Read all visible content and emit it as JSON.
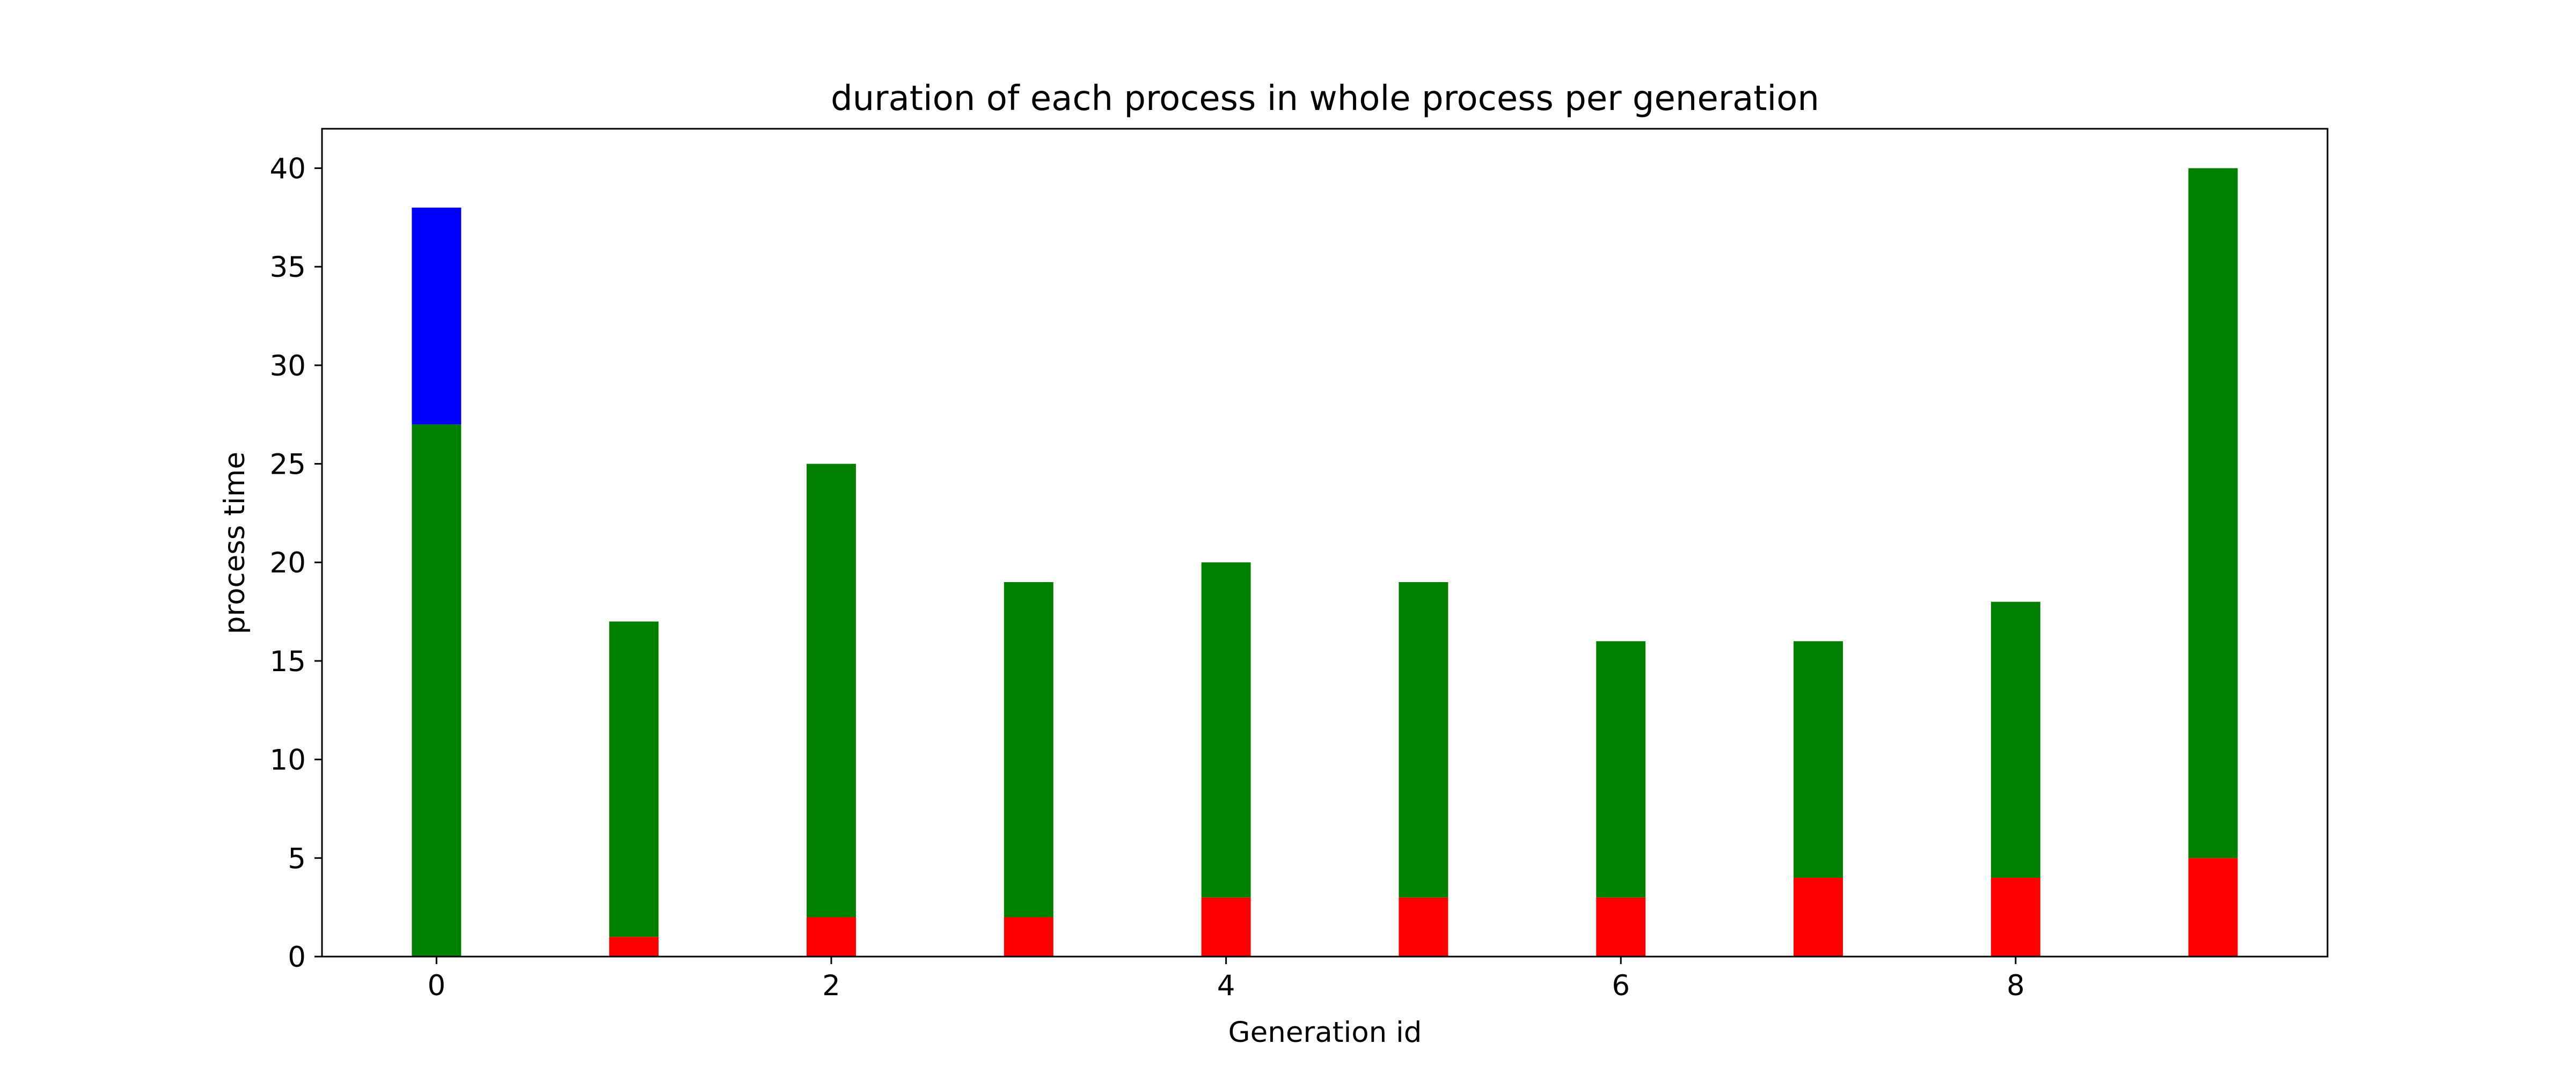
{
  "chart_data": {
    "type": "bar",
    "stacked": true,
    "title": "duration of each process in whole process per generation",
    "xlabel": "Generation id",
    "ylabel": "process time",
    "x": [
      0,
      1,
      2,
      3,
      4,
      5,
      6,
      7,
      8,
      9
    ],
    "xticks": [
      0,
      2,
      4,
      6,
      8
    ],
    "yticks": [
      0,
      5,
      10,
      15,
      20,
      25,
      30,
      35,
      40
    ],
    "xlim": [
      -0.58,
      9.58
    ],
    "ylim": [
      0,
      42
    ],
    "grid": false,
    "series": [
      {
        "color": "#ff0000",
        "values": [
          0,
          1,
          2,
          2,
          3,
          3,
          3,
          4,
          4,
          5
        ]
      },
      {
        "color": "#008000",
        "values": [
          27,
          16,
          23,
          17,
          17,
          16,
          13,
          12,
          14,
          35
        ]
      },
      {
        "color": "#0000ff",
        "values": [
          11,
          0,
          0,
          0,
          0,
          0,
          0,
          0,
          0,
          0
        ]
      }
    ]
  }
}
